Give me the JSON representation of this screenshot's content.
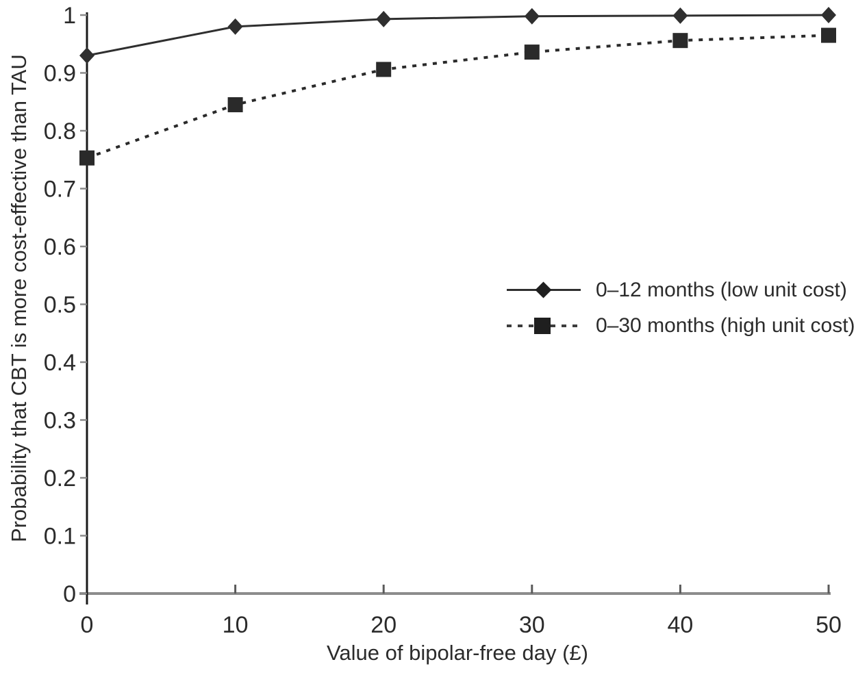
{
  "chart_data": {
    "type": "line",
    "title": "",
    "xlabel": "Value of bipolar-free day (£)",
    "ylabel": "Probability that CBT is more cost-effective than TAU",
    "x": [
      0,
      10,
      20,
      30,
      40,
      50
    ],
    "xlim": [
      0,
      50
    ],
    "ylim": [
      0,
      1
    ],
    "x_ticks": [
      0,
      10,
      20,
      30,
      40,
      50
    ],
    "x_tick_labels": [
      "0",
      "10",
      "20",
      "30",
      "40",
      "50"
    ],
    "y_ticks": [
      0,
      0.1,
      0.2,
      0.3,
      0.4,
      0.5,
      0.6,
      0.7,
      0.8,
      0.9,
      1
    ],
    "y_tick_labels": [
      "0",
      "0.1",
      "0.2",
      "0.3",
      "0.4",
      "0.5",
      "0.6",
      "0.7",
      "0.8",
      "0.9",
      "1"
    ],
    "grid": false,
    "legend_position": "center-right",
    "series": [
      {
        "name": "0–12 months (low unit cost)",
        "line_style": "solid",
        "marker": "diamond",
        "color": "#2f2f2f",
        "values": [
          0.93,
          0.98,
          0.993,
          0.998,
          0.999,
          1.0
        ]
      },
      {
        "name": "0–30 months (high unit cost)",
        "line_style": "dashed",
        "marker": "square",
        "color": "#2a2a2a",
        "values": [
          0.753,
          0.845,
          0.906,
          0.936,
          0.956,
          0.965
        ]
      }
    ],
    "colors": {
      "x_axis_line": "#8c8c8c",
      "y_axis_line": "#1a1a1a",
      "tick": "#8a8a8a",
      "x_tick": "#5a5a5a",
      "text": "#2b2b2b"
    }
  }
}
